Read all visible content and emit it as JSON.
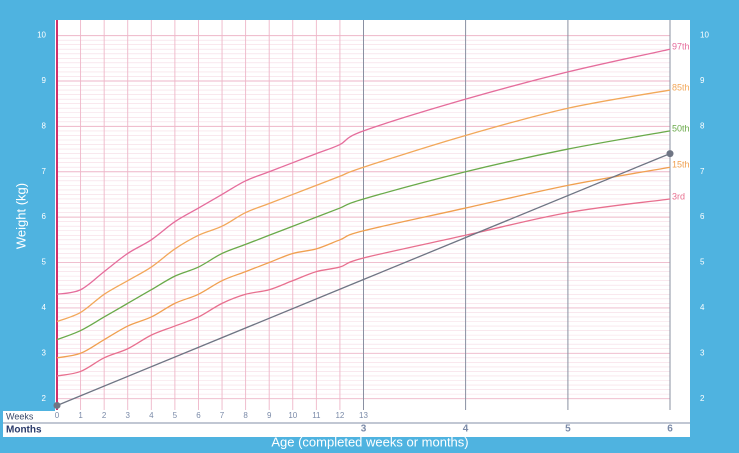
{
  "chart_data": {
    "type": "line",
    "ylabel": "Weight (kg)",
    "xlabel": "Age (completed weeks or months)",
    "weeks_label": "Weeks",
    "months_label": "Months",
    "xlim": [
      0,
      26
    ],
    "ylim": [
      1.75,
      10.3
    ],
    "yticks": [
      2,
      3,
      4,
      5,
      6,
      7,
      8,
      9,
      10
    ],
    "xticks_weeks": [
      0,
      1,
      2,
      3,
      4,
      5,
      6,
      7,
      8,
      9,
      10,
      11,
      12,
      13
    ],
    "xticks_months": [
      {
        "value": 13,
        "label": "3"
      },
      {
        "value": 17.33,
        "label": "4"
      },
      {
        "value": 21.67,
        "label": "5"
      },
      {
        "value": 26,
        "label": "6"
      }
    ],
    "grid": true,
    "x": [
      0,
      1,
      2,
      3,
      4,
      5,
      6,
      7,
      8,
      9,
      10,
      11,
      12,
      13,
      17.33,
      21.67,
      26
    ],
    "series": [
      {
        "name": "97th",
        "color": "#e56d9c",
        "values": [
          4.3,
          4.4,
          4.8,
          5.2,
          5.5,
          5.9,
          6.2,
          6.5,
          6.8,
          7.0,
          7.2,
          7.4,
          7.6,
          7.9,
          8.6,
          9.2,
          9.7
        ]
      },
      {
        "name": "85th",
        "color": "#f2a85a",
        "values": [
          3.7,
          3.9,
          4.3,
          4.6,
          4.9,
          5.3,
          5.6,
          5.8,
          6.1,
          6.3,
          6.5,
          6.7,
          6.9,
          7.1,
          7.8,
          8.4,
          8.8
        ]
      },
      {
        "name": "50th",
        "color": "#6aaa4a",
        "values": [
          3.3,
          3.5,
          3.8,
          4.1,
          4.4,
          4.7,
          4.9,
          5.2,
          5.4,
          5.6,
          5.8,
          6.0,
          6.2,
          6.4,
          7.0,
          7.5,
          7.9
        ]
      },
      {
        "name": "15th",
        "color": "#f0a050",
        "values": [
          2.9,
          3.0,
          3.3,
          3.6,
          3.8,
          4.1,
          4.3,
          4.6,
          4.8,
          5.0,
          5.2,
          5.3,
          5.5,
          5.7,
          6.2,
          6.7,
          7.1
        ]
      },
      {
        "name": "3rd",
        "color": "#e8708f",
        "values": [
          2.5,
          2.6,
          2.9,
          3.1,
          3.4,
          3.6,
          3.8,
          4.1,
          4.3,
          4.4,
          4.6,
          4.8,
          4.9,
          5.1,
          5.6,
          6.1,
          6.4
        ]
      },
      {
        "color": "#6f7584",
        "x": [
          0,
          26
        ],
        "values": [
          1.85,
          7.4
        ],
        "markers": true
      }
    ]
  }
}
